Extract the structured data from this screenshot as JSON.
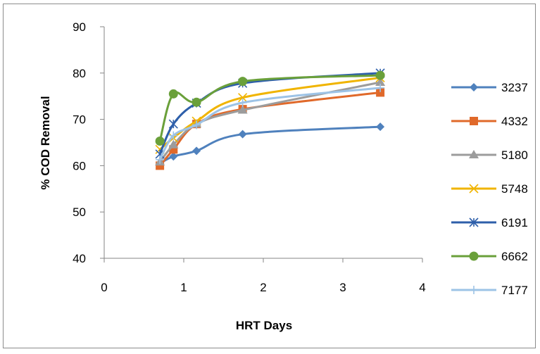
{
  "chart_data": {
    "type": "line",
    "title": "",
    "xlabel": "HRT Days",
    "ylabel": "% COD Removal",
    "xlim": [
      0,
      4
    ],
    "ylim": [
      40,
      90
    ],
    "xticks": [
      0,
      1,
      2,
      3,
      4
    ],
    "yticks": [
      40,
      50,
      60,
      70,
      80,
      90
    ],
    "grid": false,
    "legend_position": "right",
    "x": [
      0.7,
      0.87,
      1.16,
      1.74,
      3.47
    ],
    "series": [
      {
        "name": "3237",
        "values": [
          60.5,
          62.0,
          63.2,
          66.8,
          68.4
        ],
        "color": "#4f81bd",
        "marker": "diamond"
      },
      {
        "name": "4332",
        "values": [
          60.0,
          63.5,
          69.0,
          72.2,
          75.8
        ],
        "color": "#e0692a",
        "marker": "square"
      },
      {
        "name": "5180",
        "values": [
          60.8,
          64.5,
          69.0,
          72.0,
          78.0
        ],
        "color": "#9c9c9c",
        "marker": "triangle"
      },
      {
        "name": "5748",
        "values": [
          63.5,
          66.0,
          69.6,
          74.7,
          79.0
        ],
        "color": "#f0b400",
        "marker": "x"
      },
      {
        "name": "6191",
        "values": [
          62.5,
          69.0,
          73.5,
          77.8,
          80.0
        ],
        "color": "#2e5faa",
        "marker": "star"
      },
      {
        "name": "6662",
        "values": [
          65.3,
          75.5,
          73.7,
          78.2,
          79.5
        ],
        "color": "#6aa03a",
        "marker": "circle"
      },
      {
        "name": "7177",
        "values": [
          61.3,
          66.5,
          68.8,
          73.6,
          76.8
        ],
        "color": "#9dc3e6",
        "marker": "plus"
      }
    ]
  }
}
